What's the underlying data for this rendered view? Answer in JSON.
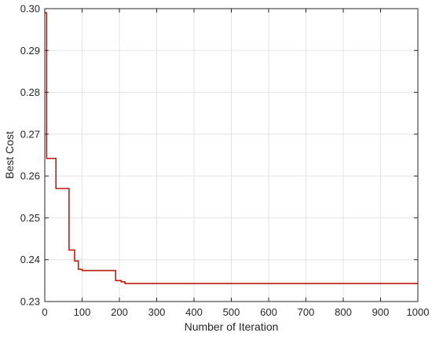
{
  "chart_data": {
    "type": "line",
    "title": "",
    "xlabel": "Number of Iteration",
    "ylabel": "Best Cost",
    "xlim": [
      0,
      1000
    ],
    "ylim": [
      0.23,
      0.3
    ],
    "grid": true,
    "x_ticks": [
      0,
      100,
      200,
      300,
      400,
      500,
      600,
      700,
      800,
      900,
      1000
    ],
    "y_ticks": [
      0.23,
      0.24,
      0.25,
      0.26,
      0.27,
      0.28,
      0.29,
      0.3
    ],
    "x_tick_labels": [
      "0",
      "100",
      "200",
      "300",
      "400",
      "500",
      "600",
      "700",
      "800",
      "900",
      "1000"
    ],
    "y_tick_labels": [
      "0.23",
      "0.24",
      "0.25",
      "0.26",
      "0.27",
      "0.28",
      "0.29",
      "0.30"
    ],
    "series": [
      {
        "color": "#b81d0a",
        "x": [
          0,
          5,
          5,
          30,
          30,
          65,
          65,
          80,
          80,
          90,
          90,
          100,
          100,
          110,
          110,
          190,
          190,
          205,
          205,
          215,
          215,
          1000
        ],
        "y": [
          0.299,
          0.299,
          0.2642,
          0.2642,
          0.257,
          0.257,
          0.2423,
          0.2423,
          0.2397,
          0.2397,
          0.2377,
          0.2377,
          0.2374,
          0.2374,
          0.2374,
          0.2374,
          0.235,
          0.235,
          0.2347,
          0.2347,
          0.2343,
          0.2343
        ]
      }
    ]
  },
  "colors": {
    "line": "#b81d0a",
    "grid": "#e3e3e3",
    "axis": "#262626",
    "background": "#ffffff"
  }
}
